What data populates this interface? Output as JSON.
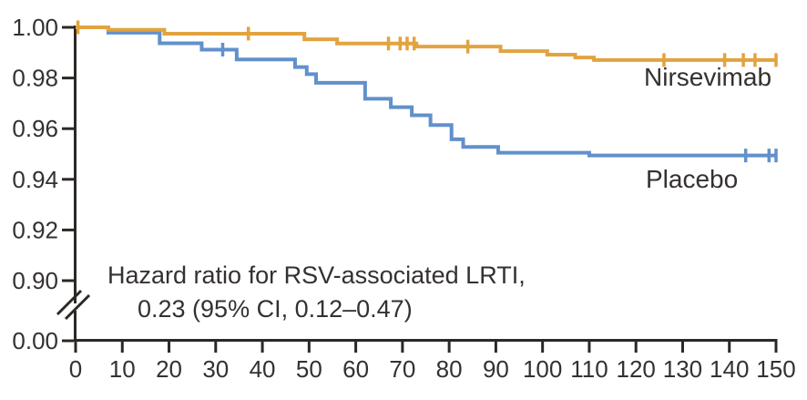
{
  "chart_data": {
    "type": "line",
    "subtype": "kaplan-meier-step-survival",
    "x_ticks": [
      0,
      10,
      20,
      30,
      40,
      50,
      60,
      70,
      80,
      90,
      100,
      110,
      120,
      130,
      140,
      150
    ],
    "y_ticks": [
      "1.00",
      "0.98",
      "0.96",
      "0.94",
      "0.92",
      "0.90",
      "0.00"
    ],
    "xlim": [
      0,
      150
    ],
    "ylim_visible": [
      0.9,
      1.0
    ],
    "axis_break_to_zero": true,
    "grid": false,
    "legend_position": "inline-right",
    "annotation": {
      "line1": "Hazard ratio for RSV-associated LRTI,",
      "line2": "0.23 (95% CI, 0.12–0.47)"
    },
    "series": [
      {
        "name": "Nirsevimab",
        "color": "#E2A33F",
        "steps": [
          [
            0,
            1.0
          ],
          [
            7,
            0.999
          ],
          [
            19,
            0.9975
          ],
          [
            49,
            0.9953
          ],
          [
            56,
            0.9936
          ],
          [
            73,
            0.9924
          ],
          [
            91,
            0.9906
          ],
          [
            101,
            0.9892
          ],
          [
            107,
            0.9881
          ],
          [
            111,
            0.9871
          ],
          [
            150,
            0.9871
          ]
        ],
        "censor_days": [
          0.5,
          37,
          67,
          69.5,
          71,
          72.5,
          84,
          126,
          139,
          143,
          145.5,
          150
        ]
      },
      {
        "name": "Placebo",
        "color": "#6190CC",
        "steps": [
          [
            0,
            1.0
          ],
          [
            7,
            0.9979
          ],
          [
            18,
            0.9937
          ],
          [
            27,
            0.9912
          ],
          [
            34.5,
            0.9873
          ],
          [
            47,
            0.9843
          ],
          [
            49.5,
            0.9815
          ],
          [
            51.5,
            0.9781
          ],
          [
            62,
            0.9718
          ],
          [
            67.5,
            0.9685
          ],
          [
            72,
            0.9653
          ],
          [
            76,
            0.9614
          ],
          [
            80.5,
            0.9558
          ],
          [
            83,
            0.9528
          ],
          [
            90.5,
            0.9505
          ],
          [
            110,
            0.9494
          ],
          [
            150,
            0.9494
          ]
        ],
        "censor_days": [
          31.5,
          143.5,
          148.5,
          150
        ]
      }
    ],
    "colors": {
      "axis": "#2B2826",
      "tick_text": "#343130",
      "background": "#FFFFFF"
    }
  }
}
